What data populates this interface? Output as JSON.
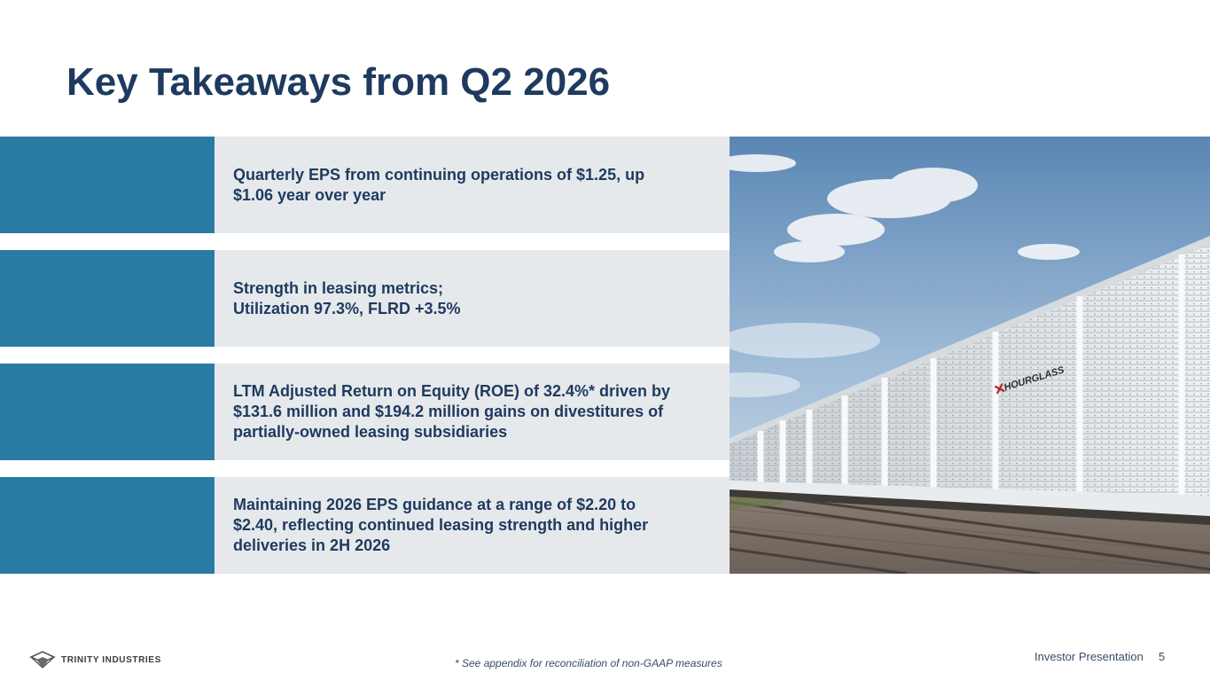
{
  "slide": {
    "title": "Key Takeaways from Q2 2026",
    "takeaways": [
      {
        "text": "Quarterly EPS from continuing operations of $1.25, up\n$1.06 year over year"
      },
      {
        "text": "Strength in leasing metrics;\nUtilization 97.3%, FLRD +3.5%"
      },
      {
        "text": "LTM Adjusted Return on Equity (ROE) of 32.4%* driven by\n$131.6 million and $194.2 million gains on divestitures of\npartially-owned leasing subsidiaries"
      },
      {
        "text": "Maintaining 2026 EPS guidance at a range of $2.20 to\n$2.40, reflecting continued leasing strength and higher\ndeliveries in 2H 2026"
      }
    ],
    "photo": {
      "railcar_marking": "HOURGLASS"
    }
  },
  "footer": {
    "logo_text": "TRINITY INDUSTRIES",
    "footnote": "* See appendix for reconciliation of non-GAAP measures",
    "label": "Investor Presentation",
    "page_number": "5"
  },
  "colors": {
    "title": "#1e3a5f",
    "accent_bar": "#2a7ba3",
    "panel": "#e6e9ec",
    "body_text": "#1e3a5f"
  }
}
